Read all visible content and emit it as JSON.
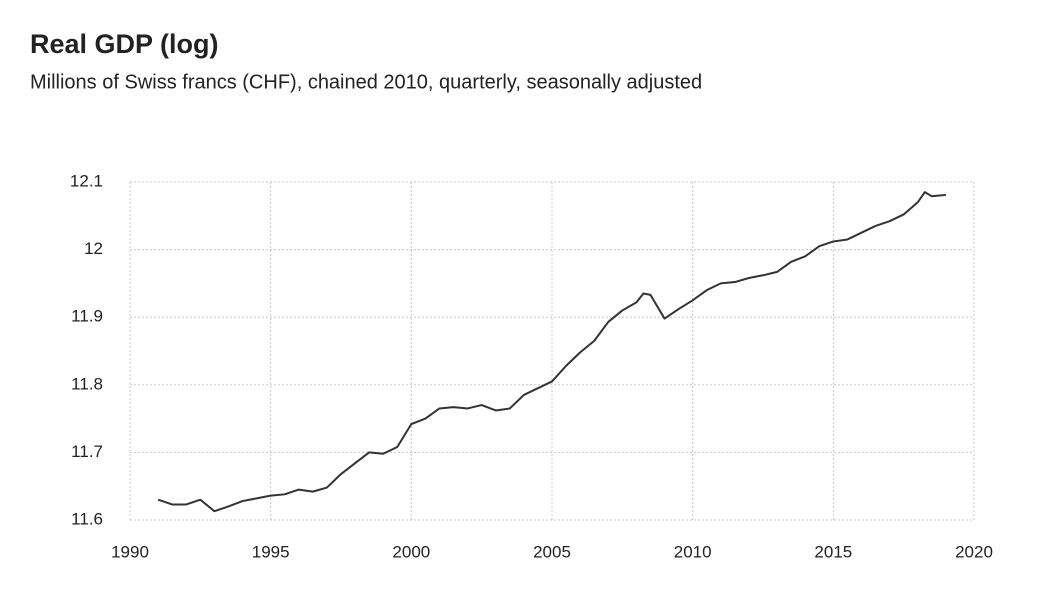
{
  "chart_data": {
    "type": "line",
    "title": "Real GDP (log)",
    "subtitle": "Millions of Swiss francs (CHF), chained 2010, quarterly, seasonally adjusted",
    "x": [
      1991,
      1991.5,
      1992,
      1992.5,
      1993,
      1993.5,
      1994,
      1994.5,
      1995,
      1995.5,
      1996,
      1996.5,
      1997,
      1997.5,
      1998,
      1998.5,
      1999,
      1999.5,
      2000,
      2000.5,
      2001,
      2001.5,
      2002,
      2002.5,
      2003,
      2003.5,
      2004,
      2004.5,
      2005,
      2005.5,
      2006,
      2006.5,
      2007,
      2007.5,
      2008,
      2008.25,
      2008.5,
      2009,
      2009.5,
      2010,
      2010.5,
      2011,
      2011.5,
      2012,
      2012.5,
      2013,
      2013.5,
      2014,
      2014.5,
      2015,
      2015.5,
      2016,
      2016.5,
      2017,
      2017.5,
      2018,
      2018.25,
      2018.5,
      2019
    ],
    "series": [
      {
        "color": "#333333",
        "values": [
          11.63,
          11.623,
          11.623,
          11.63,
          11.613,
          11.62,
          11.628,
          11.632,
          11.636,
          11.638,
          11.645,
          11.642,
          11.648,
          11.668,
          11.684,
          11.7,
          11.698,
          11.708,
          11.742,
          11.75,
          11.765,
          11.767,
          11.765,
          11.77,
          11.762,
          11.765,
          11.785,
          11.795,
          11.805,
          11.828,
          11.848,
          11.865,
          11.893,
          11.91,
          11.922,
          11.935,
          11.933,
          11.898,
          11.912,
          11.925,
          11.94,
          11.95,
          11.952,
          11.958,
          11.962,
          11.967,
          11.982,
          11.99,
          12.005,
          12.012,
          12.015,
          12.025,
          12.035,
          12.042,
          12.052,
          12.07,
          12.085,
          12.079,
          12.081
        ]
      }
    ],
    "xlim": [
      1990,
      2020
    ],
    "xticks": [
      1990,
      1995,
      2000,
      2005,
      2010,
      2015,
      2020
    ],
    "ylim": [
      11.6,
      12.1
    ],
    "yticks": [
      11.6,
      11.7,
      11.8,
      11.9,
      12,
      12.1
    ],
    "grid": true
  }
}
